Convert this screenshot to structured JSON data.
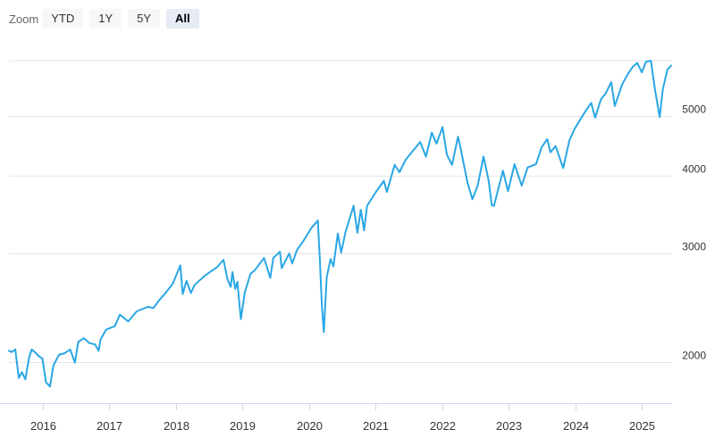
{
  "zoom": {
    "label": "Zoom",
    "buttons": [
      "YTD",
      "1Y",
      "5Y",
      "All"
    ],
    "selected": "All"
  },
  "colors": {
    "line": "#2aa7e4",
    "grid": "#e6e6e6",
    "axis": "#ccd6eb",
    "text": "#333333"
  },
  "chart_data": {
    "type": "line",
    "title": "",
    "xlabel": "",
    "ylabel": "",
    "y_scale": "log",
    "ylim": [
      1720,
      6650
    ],
    "xlim": [
      "2015-07-01",
      "2025-06-15"
    ],
    "grid": true,
    "x_ticks": [
      "2016",
      "2017",
      "2018",
      "2019",
      "2020",
      "2021",
      "2022",
      "2023",
      "2024",
      "2025"
    ],
    "y_ticks": [
      2000,
      3000,
      4000,
      5000
    ],
    "series": [
      {
        "name": "",
        "points": [
          [
            "2015-07-01",
            2090
          ],
          [
            "2015-07-15",
            2080
          ],
          [
            "2015-08-05",
            2100
          ],
          [
            "2015-08-24",
            1890
          ],
          [
            "2015-09-10",
            1930
          ],
          [
            "2015-09-29",
            1880
          ],
          [
            "2015-10-20",
            2040
          ],
          [
            "2015-11-03",
            2100
          ],
          [
            "2015-11-20",
            2080
          ],
          [
            "2015-12-10",
            2050
          ],
          [
            "2016-01-01",
            2030
          ],
          [
            "2016-01-20",
            1860
          ],
          [
            "2016-02-11",
            1830
          ],
          [
            "2016-03-01",
            1980
          ],
          [
            "2016-04-01",
            2060
          ],
          [
            "2016-05-01",
            2070
          ],
          [
            "2016-06-01",
            2100
          ],
          [
            "2016-06-27",
            2000
          ],
          [
            "2016-07-15",
            2160
          ],
          [
            "2016-08-15",
            2190
          ],
          [
            "2016-09-15",
            2150
          ],
          [
            "2016-10-15",
            2140
          ],
          [
            "2016-11-04",
            2090
          ],
          [
            "2016-11-15",
            2180
          ],
          [
            "2016-12-15",
            2260
          ],
          [
            "2017-02-01",
            2290
          ],
          [
            "2017-03-01",
            2390
          ],
          [
            "2017-04-15",
            2330
          ],
          [
            "2017-06-01",
            2420
          ],
          [
            "2017-08-01",
            2460
          ],
          [
            "2017-09-01",
            2450
          ],
          [
            "2017-10-01",
            2520
          ],
          [
            "2017-11-01",
            2580
          ],
          [
            "2017-12-15",
            2680
          ],
          [
            "2018-01-26",
            2870
          ],
          [
            "2018-02-08",
            2580
          ],
          [
            "2018-03-01",
            2710
          ],
          [
            "2018-03-25",
            2590
          ],
          [
            "2018-04-15",
            2670
          ],
          [
            "2018-05-15",
            2720
          ],
          [
            "2018-06-15",
            2770
          ],
          [
            "2018-07-15",
            2810
          ],
          [
            "2018-08-15",
            2850
          ],
          [
            "2018-09-20",
            2930
          ],
          [
            "2018-10-11",
            2730
          ],
          [
            "2018-10-29",
            2650
          ],
          [
            "2018-11-08",
            2800
          ],
          [
            "2018-11-23",
            2630
          ],
          [
            "2018-12-05",
            2700
          ],
          [
            "2018-12-24",
            2350
          ],
          [
            "2019-01-15",
            2600
          ],
          [
            "2019-02-15",
            2780
          ],
          [
            "2019-03-15",
            2830
          ],
          [
            "2019-04-30",
            2950
          ],
          [
            "2019-06-03",
            2740
          ],
          [
            "2019-06-20",
            2950
          ],
          [
            "2019-07-26",
            3020
          ],
          [
            "2019-08-05",
            2840
          ],
          [
            "2019-09-15",
            3000
          ],
          [
            "2019-10-02",
            2890
          ],
          [
            "2019-10-28",
            3040
          ],
          [
            "2019-12-01",
            3140
          ],
          [
            "2020-01-15",
            3300
          ],
          [
            "2020-02-19",
            3390
          ],
          [
            "2020-03-01",
            2950
          ],
          [
            "2020-03-12",
            2480
          ],
          [
            "2020-03-23",
            2240
          ],
          [
            "2020-04-08",
            2750
          ],
          [
            "2020-04-29",
            2940
          ],
          [
            "2020-05-15",
            2860
          ],
          [
            "2020-06-08",
            3230
          ],
          [
            "2020-06-26",
            3010
          ],
          [
            "2020-07-20",
            3250
          ],
          [
            "2020-09-02",
            3580
          ],
          [
            "2020-09-23",
            3240
          ],
          [
            "2020-10-12",
            3530
          ],
          [
            "2020-10-30",
            3270
          ],
          [
            "2020-11-15",
            3580
          ],
          [
            "2020-12-31",
            3760
          ],
          [
            "2021-02-15",
            3930
          ],
          [
            "2021-03-04",
            3770
          ],
          [
            "2021-04-15",
            4170
          ],
          [
            "2021-05-12",
            4060
          ],
          [
            "2021-06-15",
            4250
          ],
          [
            "2021-07-15",
            4360
          ],
          [
            "2021-09-02",
            4540
          ],
          [
            "2021-10-04",
            4300
          ],
          [
            "2021-11-05",
            4700
          ],
          [
            "2021-12-01",
            4510
          ],
          [
            "2022-01-03",
            4800
          ],
          [
            "2022-01-27",
            4330
          ],
          [
            "2022-02-24",
            4170
          ],
          [
            "2022-03-29",
            4630
          ],
          [
            "2022-04-15",
            4390
          ],
          [
            "2022-05-20",
            3900
          ],
          [
            "2022-06-16",
            3670
          ],
          [
            "2022-07-15",
            3860
          ],
          [
            "2022-08-16",
            4300
          ],
          [
            "2022-09-13",
            3930
          ],
          [
            "2022-09-30",
            3590
          ],
          [
            "2022-10-12",
            3580
          ],
          [
            "2022-11-30",
            4080
          ],
          [
            "2022-12-28",
            3780
          ],
          [
            "2023-02-02",
            4180
          ],
          [
            "2023-03-13",
            3860
          ],
          [
            "2023-04-15",
            4130
          ],
          [
            "2023-05-31",
            4180
          ],
          [
            "2023-06-30",
            4450
          ],
          [
            "2023-07-31",
            4590
          ],
          [
            "2023-08-18",
            4370
          ],
          [
            "2023-09-15",
            4470
          ],
          [
            "2023-10-27",
            4120
          ],
          [
            "2023-11-30",
            4570
          ],
          [
            "2023-12-29",
            4770
          ],
          [
            "2024-02-15",
            5030
          ],
          [
            "2024-03-28",
            5250
          ],
          [
            "2024-04-19",
            4970
          ],
          [
            "2024-05-21",
            5320
          ],
          [
            "2024-06-15",
            5430
          ],
          [
            "2024-07-16",
            5670
          ],
          [
            "2024-08-05",
            5190
          ],
          [
            "2024-09-15",
            5630
          ],
          [
            "2024-10-15",
            5840
          ],
          [
            "2024-11-11",
            6000
          ],
          [
            "2024-12-06",
            6090
          ],
          [
            "2024-12-31",
            5880
          ],
          [
            "2025-01-23",
            6120
          ],
          [
            "2025-02-19",
            6140
          ],
          [
            "2025-03-13",
            5520
          ],
          [
            "2025-04-08",
            4980
          ],
          [
            "2025-04-25",
            5520
          ],
          [
            "2025-05-20",
            5940
          ],
          [
            "2025-06-10",
            6030
          ]
        ]
      }
    ]
  }
}
